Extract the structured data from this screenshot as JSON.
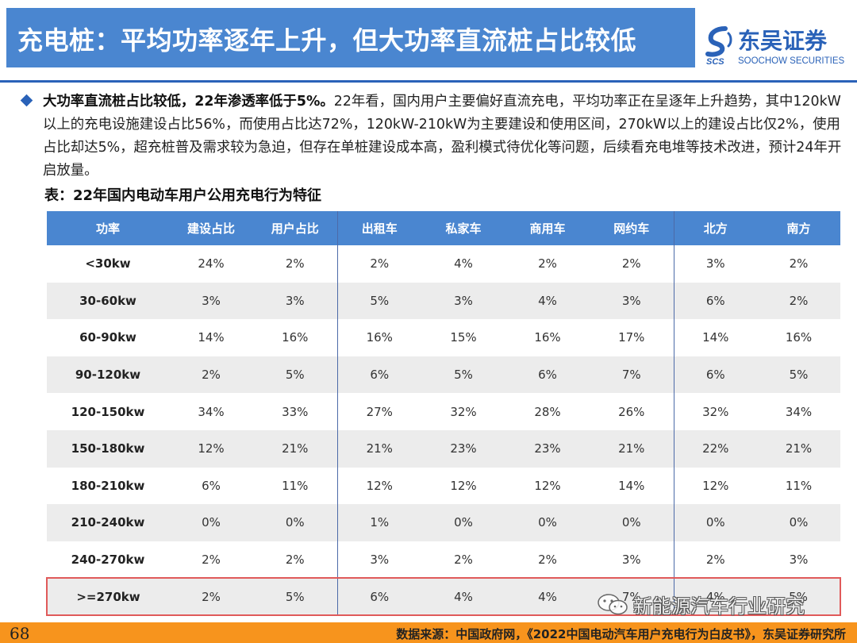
{
  "header": {
    "title": "充电桩：平均功率逐年上升，但大功率直流桩占比较低",
    "logo": {
      "cn": "东吴证券",
      "abbr": "SCS",
      "en": "SOOCHOW SECURITIES",
      "brand_color": "#2a62b8"
    }
  },
  "bullet": {
    "icon": "diamond-bullet-icon",
    "lead": "大功率直流桩占比较低，22年渗透率低于5%。",
    "body": "22年看，国内用户主要偏好直流充电，平均功率正在呈逐年上升趋势，其中120kW以上的充电设施建设占比56%，而使用占比达72%，120kW-210kW为主要建设和使用区间，270kW以上的建设占比仅2%，使用占比却达5%，超充桩普及需求较为急迫，但存在单桩建设成本高，盈利模式待优化等问题，后续看充电堆等技术改进，预计24年开启放量。"
  },
  "table": {
    "title": "表：22年国内电动车用户公用充电行为特征",
    "columns": [
      "功率",
      "建设占比",
      "用户占比",
      "出租车",
      "私家车",
      "商用车",
      "网约车",
      "北方",
      "南方"
    ],
    "rows": [
      [
        "<30kw",
        "24%",
        "2%",
        "2%",
        "4%",
        "2%",
        "2%",
        "3%",
        "2%"
      ],
      [
        "30-60kw",
        "3%",
        "3%",
        "5%",
        "3%",
        "4%",
        "3%",
        "6%",
        "2%"
      ],
      [
        "60-90kw",
        "14%",
        "16%",
        "16%",
        "15%",
        "16%",
        "17%",
        "14%",
        "16%"
      ],
      [
        "90-120kw",
        "2%",
        "5%",
        "6%",
        "5%",
        "6%",
        "7%",
        "6%",
        "5%"
      ],
      [
        "120-150kw",
        "34%",
        "33%",
        "27%",
        "32%",
        "28%",
        "26%",
        "32%",
        "34%"
      ],
      [
        "150-180kw",
        "12%",
        "21%",
        "21%",
        "23%",
        "23%",
        "21%",
        "22%",
        "21%"
      ],
      [
        "180-210kw",
        "6%",
        "11%",
        "12%",
        "12%",
        "12%",
        "14%",
        "12%",
        "11%"
      ],
      [
        "210-240kw",
        "0%",
        "0%",
        "1%",
        "0%",
        "0%",
        "0%",
        "0%",
        "0%"
      ],
      [
        "240-270kw",
        "2%",
        "2%",
        "3%",
        "2%",
        "2%",
        "3%",
        "2%",
        "3%"
      ],
      [
        ">=270kw",
        "2%",
        "5%",
        "6%",
        "4%",
        "4%",
        "7%",
        "4%",
        "5%"
      ]
    ],
    "header_color": "#4a86d0",
    "highlight_color": "#e05a5a"
  },
  "footer": {
    "page_number": "68",
    "source": "数据来源：中国政府网，《2022中国电动汽车用户充电行为白皮书》，东吴证券研究所",
    "bar_color": "#f7941d"
  },
  "watermark": {
    "icon": "wechat-icon",
    "text": "新能源汽车行业研究"
  }
}
